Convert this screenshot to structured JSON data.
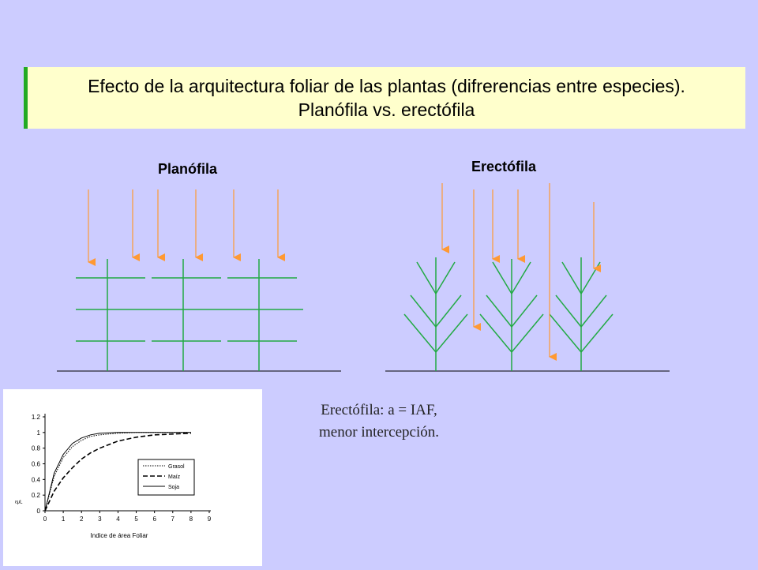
{
  "title": {
    "line1": "Efecto de la arquitectura foliar de las plantas (difrerencias entre especies).",
    "line2": "Planófila vs. erectófila"
  },
  "diagram": {
    "planofila_label": "Planófila",
    "erectofila_label": "Erectófila",
    "arrow_color": "#ff9933",
    "leaf_color": "#22aa44"
  },
  "caption": {
    "line1": "Erectófila: a = IAF,",
    "line2": "menor intercepción."
  },
  "chart_data": {
    "type": "line",
    "title": "",
    "xlabel": "Indice de área Foliar",
    "ylabel": "εμL",
    "xlim": [
      0,
      9
    ],
    "ylim": [
      0,
      1.2
    ],
    "x_ticks": [
      "0",
      "1",
      "2",
      "3",
      "4",
      "5",
      "6",
      "7",
      "8",
      "9"
    ],
    "y_ticks": [
      "0",
      "0.2",
      "0.4",
      "0.6",
      "0.8",
      "1",
      "1.2"
    ],
    "legend_position": "bottom-right",
    "series": [
      {
        "name": "Grasol",
        "style": "dotted",
        "x": [
          0,
          0.5,
          1,
          1.5,
          2,
          2.5,
          3,
          4,
          5,
          6,
          7,
          8
        ],
        "y": [
          0,
          0.44,
          0.68,
          0.82,
          0.9,
          0.95,
          0.97,
          0.99,
          1.0,
          1.0,
          1.0,
          1.0
        ]
      },
      {
        "name": "Maíz",
        "style": "dashed",
        "x": [
          0,
          0.5,
          1,
          1.5,
          2,
          2.5,
          3,
          4,
          5,
          6,
          7,
          8
        ],
        "y": [
          0,
          0.25,
          0.42,
          0.55,
          0.66,
          0.74,
          0.8,
          0.89,
          0.94,
          0.97,
          0.98,
          0.99
        ]
      },
      {
        "name": "Soja",
        "style": "solid",
        "x": [
          0,
          0.5,
          1,
          1.5,
          2,
          2.5,
          3,
          4,
          5,
          6,
          7,
          8
        ],
        "y": [
          0,
          0.48,
          0.72,
          0.86,
          0.93,
          0.97,
          0.99,
          1.0,
          1.0,
          1.0,
          1.0,
          1.0
        ]
      }
    ]
  }
}
